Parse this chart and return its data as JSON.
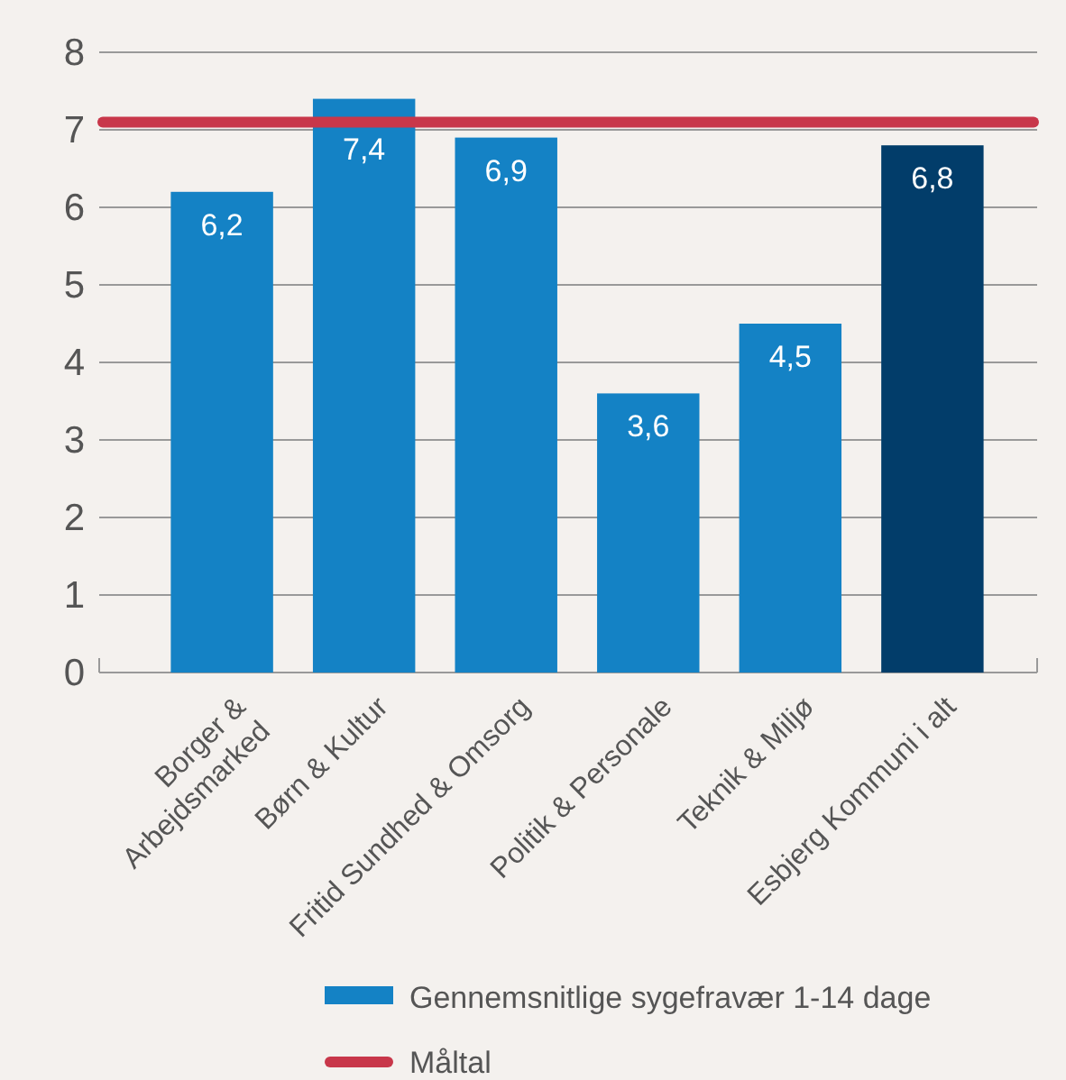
{
  "chart_data": {
    "type": "bar",
    "categories": [
      "Borger &\nArbejdsmarked",
      "Børn & Kultur",
      "Fritid Sundhed & Omsorg",
      "Politik & Personale",
      "Teknik & Miljø",
      "Esbjerg Kommuni i alt"
    ],
    "series": [
      {
        "name": "Gennemsnitlige sygefravær 1-14 dage",
        "color": "#1482c5",
        "colors": [
          "#1482c5",
          "#1482c5",
          "#1482c5",
          "#1482c5",
          "#1482c5",
          "#023d6a"
        ],
        "values": [
          6.2,
          7.4,
          6.9,
          3.6,
          4.5,
          6.8
        ],
        "value_labels": [
          "6,2",
          "7,4",
          "6,9",
          "3,6",
          "4,5",
          "6,8"
        ]
      }
    ],
    "ylim": [
      0,
      8
    ],
    "yticks": [
      0,
      1,
      2,
      3,
      4,
      5,
      6,
      7,
      8
    ],
    "grid": "y",
    "legend": "bottom",
    "ref_lines": [
      {
        "axis": "y",
        "value": 7.1,
        "label": "Måltal",
        "color": "#c8374a"
      }
    ]
  }
}
